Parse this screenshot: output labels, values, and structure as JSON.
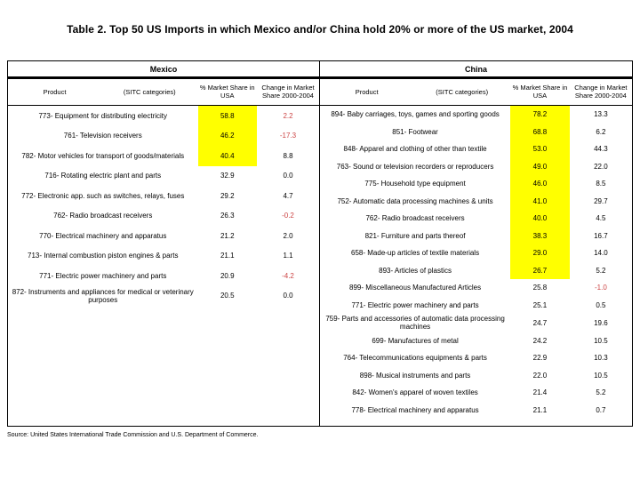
{
  "title": "Table 2. Top 50 US Imports in which Mexico and/or China hold 20% or more of the US market, 2004",
  "source_note": "Source: United States International Trade Commission and U.S. Department of Commerce.",
  "colors": {
    "highlight": "#ffff00",
    "negative_text": "#cc4444",
    "border": "#000000"
  },
  "columns": {
    "product": "Product",
    "sitc": "(SITC categories)",
    "share": "% Market Share in USA",
    "change": "Change in Market Share 2000-2004"
  },
  "chart_data": {
    "type": "table",
    "title": "Table 2. Top 50 US Imports in which Mexico and/or China hold 20% or more of the US market, 2004",
    "sections": [
      {
        "name": "Mexico",
        "rows": [
          {
            "product": "773- Equipment for distributing electricity",
            "share": "58.8",
            "change": "2.2",
            "hl": true,
            "neg": true
          },
          {
            "product": "761- Television receivers",
            "share": "46.2",
            "change": "-17.3",
            "hl": true,
            "neg": true
          },
          {
            "product": "782- Motor vehicles for transport of goods/materials",
            "share": "40.4",
            "change": "8.8",
            "hl": true,
            "neg": false
          },
          {
            "product": "716- Rotating electric plant and parts",
            "share": "32.9",
            "change": "0.0",
            "hl": false,
            "neg": false
          },
          {
            "product": "772- Electronic app. such as switches, relays, fuses",
            "share": "29.2",
            "change": "4.7",
            "hl": false,
            "neg": false
          },
          {
            "product": "762- Radio broadcast receivers",
            "share": "26.3",
            "change": "-0.2",
            "hl": false,
            "neg": true
          },
          {
            "product": "770- Electrical machinery and apparatus",
            "share": "21.2",
            "change": "2.0",
            "hl": false,
            "neg": false
          },
          {
            "product": "713- Internal combustion piston engines & parts",
            "share": "21.1",
            "change": "1.1",
            "hl": false,
            "neg": false
          },
          {
            "product": "771- Electric power machinery and parts",
            "share": "20.9",
            "change": "-4.2",
            "hl": false,
            "neg": true
          },
          {
            "product": "872- Instruments and appliances for medical or veterinary purposes",
            "share": "20.5",
            "change": "0.0",
            "hl": false,
            "neg": false
          }
        ]
      },
      {
        "name": "China",
        "rows": [
          {
            "product": "894- Baby carriages, toys, games and sporting goods",
            "share": "78.2",
            "change": "13.3",
            "hl": true,
            "neg": false
          },
          {
            "product": "851- Footwear",
            "share": "68.8",
            "change": "6.2",
            "hl": true,
            "neg": false
          },
          {
            "product": "848- Apparel and clothing of other than textile",
            "share": "53.0",
            "change": "44.3",
            "hl": true,
            "neg": false
          },
          {
            "product": "763- Sound or television recorders or reproducers",
            "share": "49.0",
            "change": "22.0",
            "hl": true,
            "neg": false
          },
          {
            "product": "775- Household type equipment",
            "share": "46.0",
            "change": "8.5",
            "hl": true,
            "neg": false
          },
          {
            "product": "752- Automatic data processing machines & units",
            "share": "41.0",
            "change": "29.7",
            "hl": true,
            "neg": false
          },
          {
            "product": "762- Radio broadcast receivers",
            "share": "40.0",
            "change": "4.5",
            "hl": true,
            "neg": false
          },
          {
            "product": "821- Furniture and parts thereof",
            "share": "38.3",
            "change": "16.7",
            "hl": true,
            "neg": false
          },
          {
            "product": "658- Made-up articles of textile materials",
            "share": "29.0",
            "change": "14.0",
            "hl": true,
            "neg": false
          },
          {
            "product": "893- Articles of plastics",
            "share": "26.7",
            "change": "5.2",
            "hl": true,
            "neg": false
          },
          {
            "product": "899- Miscellaneous Manufactured Articles",
            "share": "25.8",
            "change": "-1.0",
            "hl": false,
            "neg": true
          },
          {
            "product": "771- Electric power machinery and parts",
            "share": "25.1",
            "change": "0.5",
            "hl": false,
            "neg": false
          },
          {
            "product": "759- Parts and accessories of automatic data processing machines",
            "share": "24.7",
            "change": "19.6",
            "hl": false,
            "neg": false
          },
          {
            "product": "699- Manufactures of metal",
            "share": "24.2",
            "change": "10.5",
            "hl": false,
            "neg": false
          },
          {
            "product": "764- Telecommunications equipments & parts",
            "share": "22.9",
            "change": "10.3",
            "hl": false,
            "neg": false
          },
          {
            "product": "898- Musical instruments and parts",
            "share": "22.0",
            "change": "10.5",
            "hl": false,
            "neg": false
          },
          {
            "product": "842- Women's apparel of woven textiles",
            "share": "21.4",
            "change": "5.2",
            "hl": false,
            "neg": false
          },
          {
            "product": "778- Electrical machinery and apparatus",
            "share": "21.1",
            "change": "0.7",
            "hl": false,
            "neg": false
          }
        ]
      }
    ]
  }
}
